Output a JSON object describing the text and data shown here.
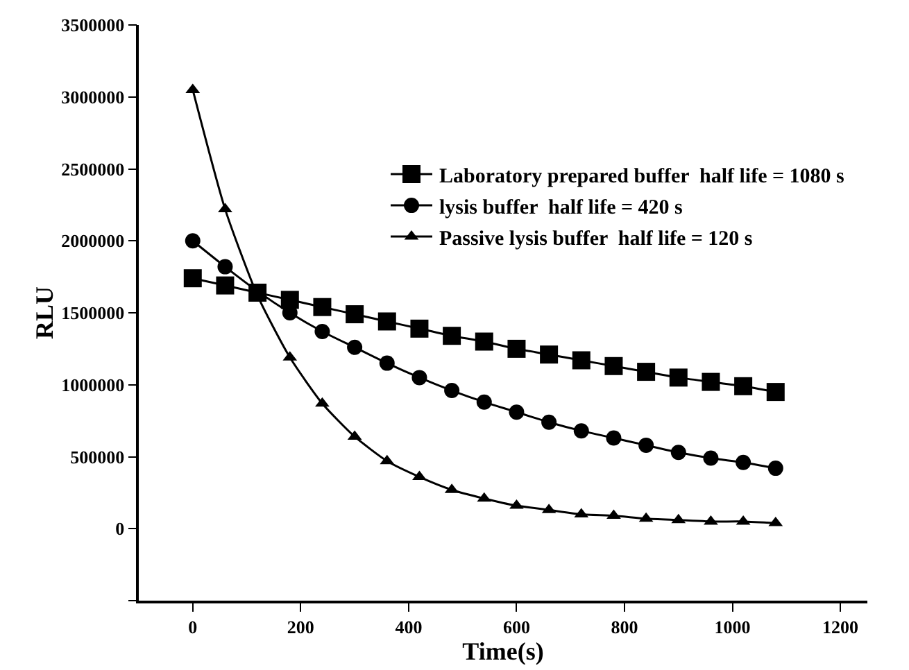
{
  "chart_data": {
    "type": "line",
    "xlabel": "Time(s)",
    "ylabel": "RLU",
    "x": [
      0,
      60,
      120,
      180,
      240,
      300,
      360,
      420,
      480,
      540,
      600,
      660,
      720,
      780,
      840,
      900,
      960,
      1020,
      1080
    ],
    "series": [
      {
        "name": "Laboratory prepared buffer  half life = 1080 s",
        "color": "#000000",
        "marker": "square",
        "values": [
          1740000,
          1690000,
          1640000,
          1590000,
          1540000,
          1490000,
          1440000,
          1390000,
          1340000,
          1300000,
          1250000,
          1210000,
          1170000,
          1130000,
          1090000,
          1050000,
          1020000,
          990000,
          950000
        ]
      },
      {
        "name": "lysis buffer  half life = 420 s",
        "color": "#000000",
        "marker": "circle",
        "values": [
          2000000,
          1820000,
          1650000,
          1500000,
          1370000,
          1260000,
          1150000,
          1050000,
          960000,
          880000,
          810000,
          740000,
          680000,
          630000,
          580000,
          530000,
          490000,
          460000,
          420000
        ]
      },
      {
        "name": "Passive lysis buffer  half life = 120 s",
        "color": "#000000",
        "marker": "triangle",
        "values": [
          3050000,
          2220000,
          1620000,
          1190000,
          870000,
          640000,
          470000,
          360000,
          270000,
          210000,
          160000,
          130000,
          100000,
          90000,
          70000,
          60000,
          50000,
          50000,
          40000
        ]
      }
    ],
    "xlim": [
      -100,
      1250
    ],
    "xticks": [
      0,
      200,
      400,
      600,
      800,
      1000,
      1200
    ],
    "ylim": [
      -500000,
      3500000
    ],
    "yticks": [
      {
        "value": -500000,
        "label": null
      },
      0,
      500000,
      1000000,
      1500000,
      2000000,
      2500000,
      3000000,
      3500000
    ],
    "grid": false,
    "legend": "top right",
    "line_style": "solid"
  }
}
